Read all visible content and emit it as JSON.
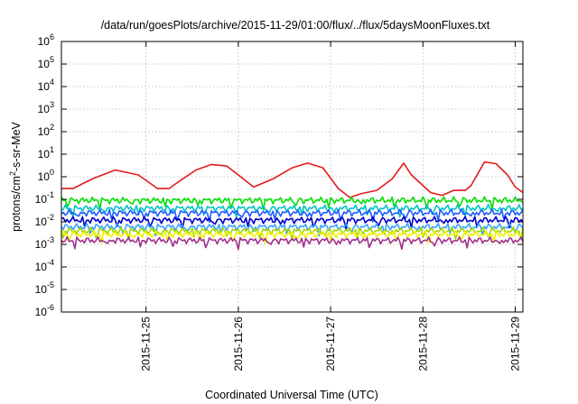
{
  "chart_data": {
    "type": "line",
    "title": "/data/run/goesPlots/archive/2015-11-29/01:00/flux/../flux/5daysMoonFluxes.txt",
    "xlabel": "Coordinated Universal Time (UTC)",
    "ylabel_parts": [
      "protons/cm",
      "2",
      "-s-sr-MeV"
    ],
    "yscale": "log",
    "ylim_exp": [
      -6,
      6
    ],
    "xlim": [
      "2015-11-24T02:00",
      "2015-11-29T02:00"
    ],
    "grid": true,
    "legend": "none",
    "x_ticks": [
      {
        "t": "2015-11-25T00:00",
        "label": "2015-11-25"
      },
      {
        "t": "2015-11-26T00:00",
        "label": "2015-11-26"
      },
      {
        "t": "2015-11-27T00:00",
        "label": "2015-11-27"
      },
      {
        "t": "2015-11-28T00:00",
        "label": "2015-11-28"
      },
      {
        "t": "2015-11-29T00:00",
        "label": "2015-11-29"
      }
    ],
    "y_ticks": [
      {
        "exp": -6,
        "base": "10",
        "sup": "-6"
      },
      {
        "exp": -5,
        "base": "10",
        "sup": "-5"
      },
      {
        "exp": -4,
        "base": "10",
        "sup": "-4"
      },
      {
        "exp": -3,
        "base": "10",
        "sup": "-3"
      },
      {
        "exp": -2,
        "base": "10",
        "sup": "-2"
      },
      {
        "exp": -1,
        "base": "10",
        "sup": "-1"
      },
      {
        "exp": 0,
        "base": "10",
        "sup": "0"
      },
      {
        "exp": 1,
        "base": "10",
        "sup": "1"
      },
      {
        "exp": 2,
        "base": "10",
        "sup": "2"
      },
      {
        "exp": 3,
        "base": "10",
        "sup": "3"
      },
      {
        "exp": 4,
        "base": "10",
        "sup": "4"
      },
      {
        "exp": 5,
        "base": "10",
        "sup": "5"
      },
      {
        "exp": 6,
        "base": "10",
        "sup": "6"
      }
    ],
    "series": [
      {
        "color": "#e41a1c",
        "times": [
          "2015-11-24T02:00",
          "2015-11-24T05:00",
          "2015-11-24T10:00",
          "2015-11-24T16:00",
          "2015-11-24T22:00",
          "2015-11-25T03:00",
          "2015-11-25T06:00",
          "2015-11-25T09:00",
          "2015-11-25T13:00",
          "2015-11-25T17:00",
          "2015-11-25T21:00",
          "2015-11-26T00:00",
          "2015-11-26T04:00",
          "2015-11-26T09:00",
          "2015-11-26T14:00",
          "2015-11-26T18:00",
          "2015-11-26T22:00",
          "2015-11-27T02:00",
          "2015-11-27T05:00",
          "2015-11-27T08:00",
          "2015-11-27T12:00",
          "2015-11-27T16:00",
          "2015-11-27T19:00",
          "2015-11-27T21:00",
          "2015-11-28T02:00",
          "2015-11-28T05:00",
          "2015-11-28T08:00",
          "2015-11-28T11:00",
          "2015-11-28T12:30",
          "2015-11-28T16:00",
          "2015-11-28T19:00",
          "2015-11-28T22:00",
          "2015-11-29T00:00",
          "2015-11-29T02:00"
        ],
        "values": [
          0.3,
          0.3,
          0.8,
          2.0,
          1.2,
          0.3,
          0.3,
          0.7,
          2.0,
          3.5,
          3.0,
          1.2,
          0.35,
          0.8,
          2.5,
          4.0,
          2.5,
          0.3,
          0.12,
          0.18,
          0.25,
          0.8,
          4.0,
          1.2,
          0.2,
          0.15,
          0.25,
          0.25,
          0.4,
          4.5,
          3.8,
          1.2,
          0.35,
          0.2
        ],
        "level": null
      },
      {
        "color": "#00e000",
        "times": [],
        "values": [],
        "level": 0.09
      },
      {
        "color": "#00c4c4",
        "times": [],
        "values": [],
        "level": 0.04
      },
      {
        "color": "#1e5aff",
        "times": [],
        "values": [],
        "level": 0.025
      },
      {
        "color": "#0000c8",
        "times": [],
        "values": [],
        "level": 0.012
      },
      {
        "color": "#3aa0ff",
        "times": [],
        "values": [],
        "level": 0.006
      },
      {
        "color": "#a0d800",
        "times": [],
        "values": [],
        "level": 0.004
      },
      {
        "color": "#f2f200",
        "times": [],
        "values": [],
        "level": 0.0028
      },
      {
        "color": "#a0308a",
        "times": [],
        "values": [],
        "level": 0.0015
      }
    ]
  }
}
